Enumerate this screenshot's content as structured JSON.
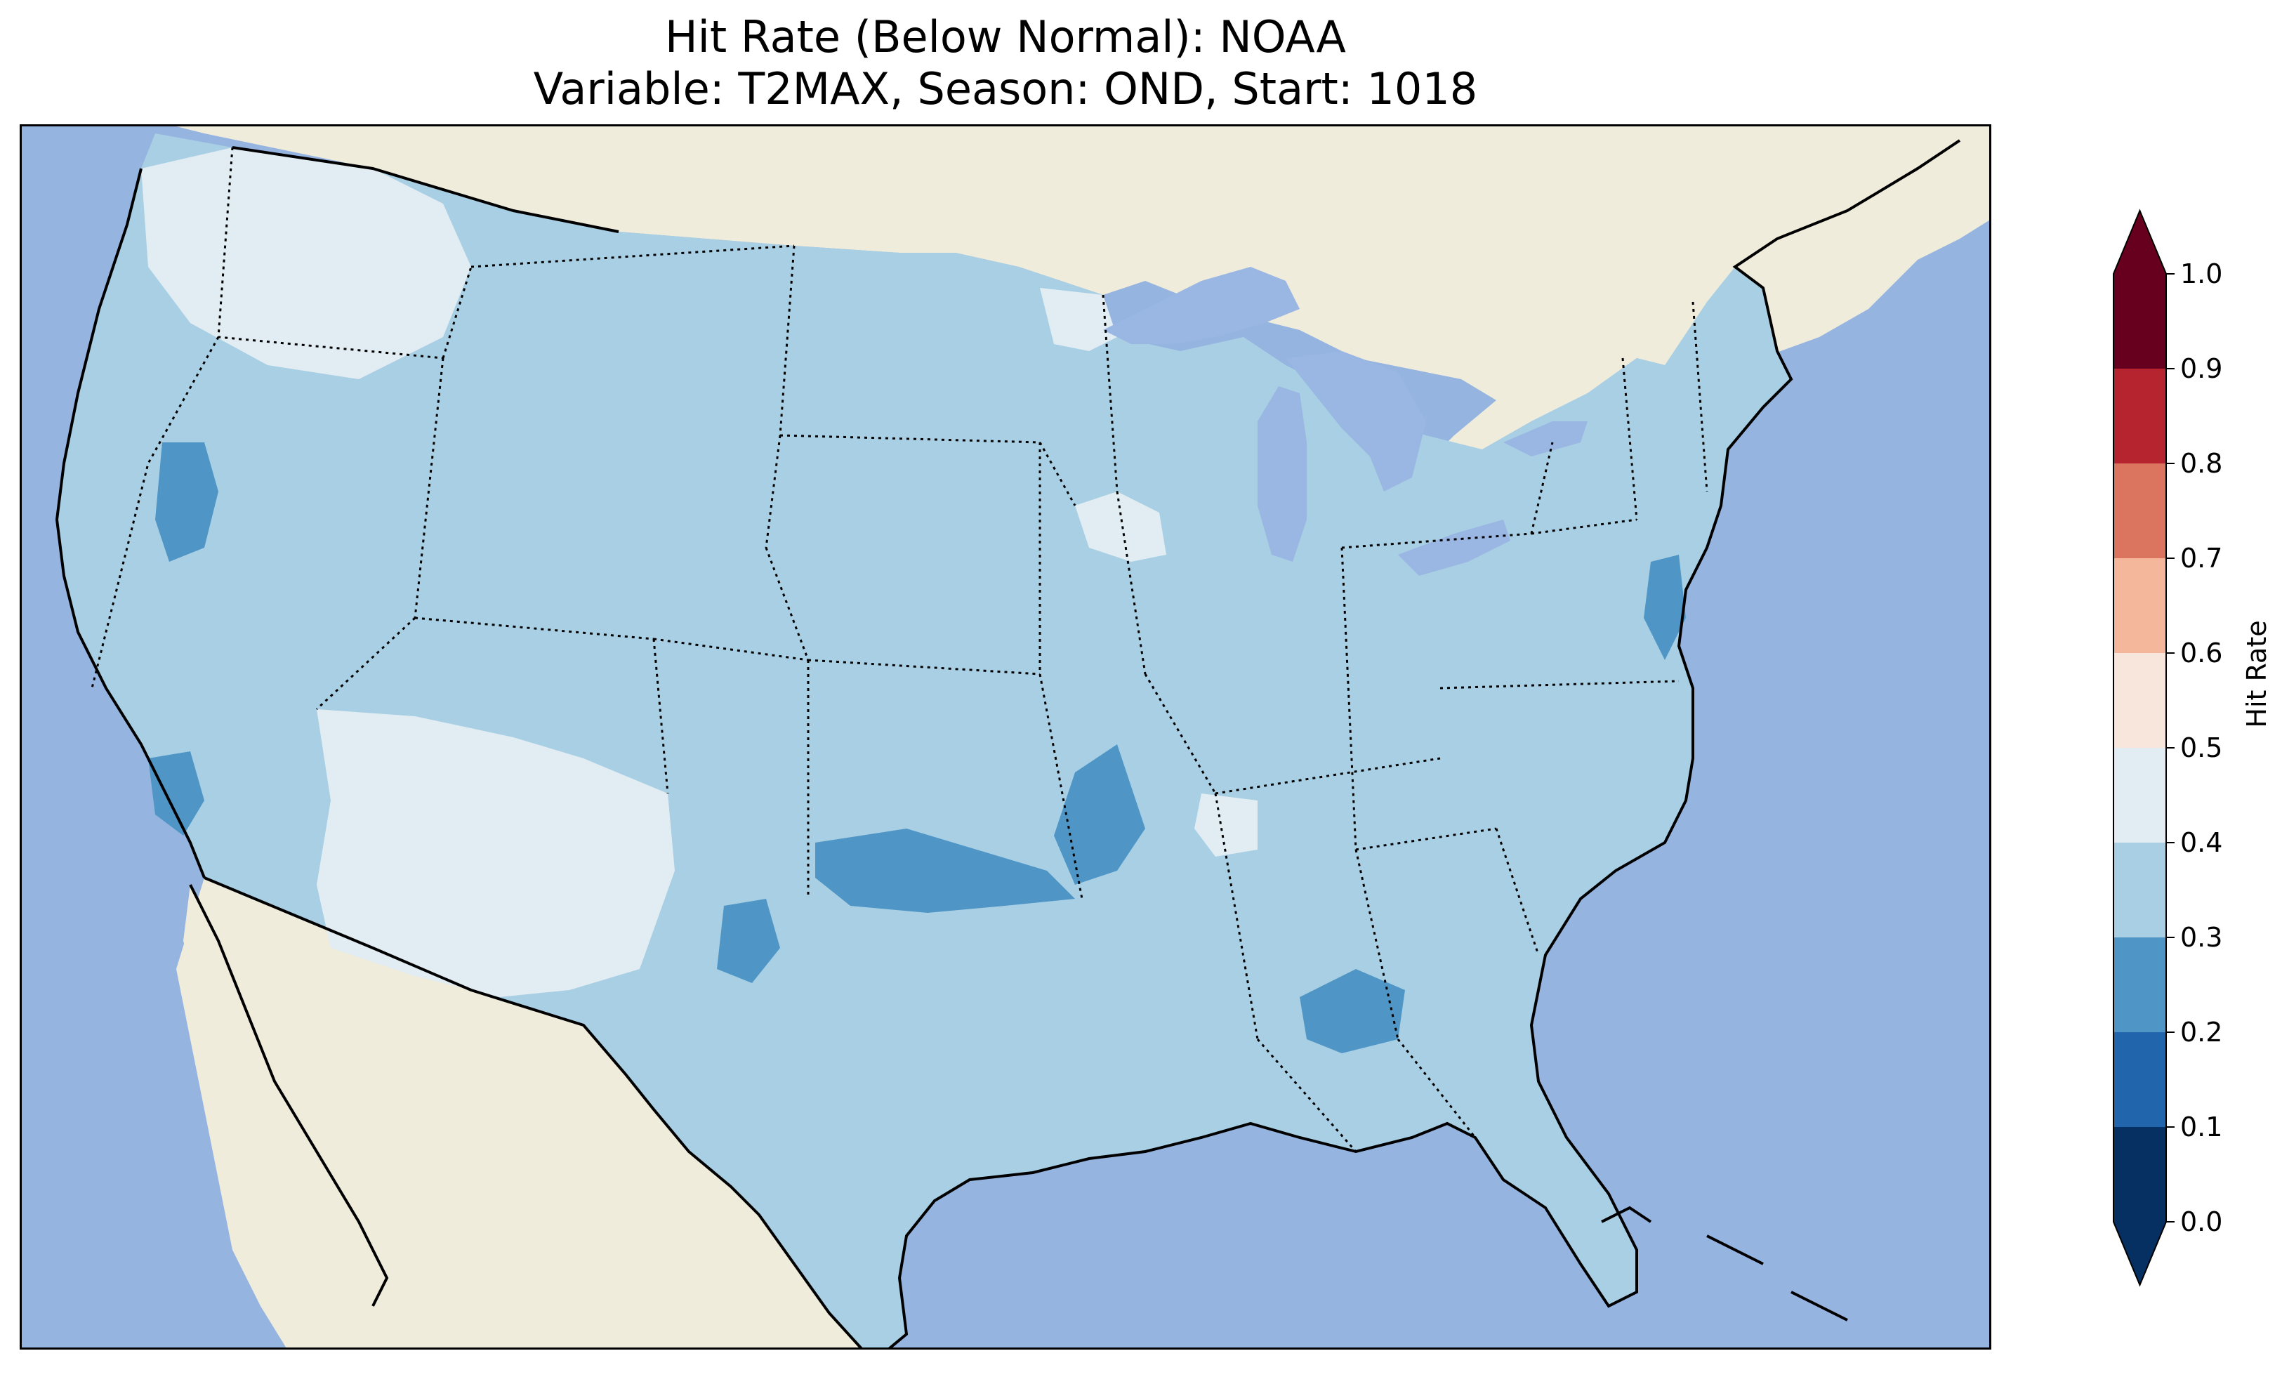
{
  "title": {
    "line1": "Hit Rate (Below Normal): NOAA",
    "line2": "Variable: T2MAX, Season: OND, Start: 1018"
  },
  "colors": {
    "ocean": "#96b4e0",
    "land": "#efecdc",
    "lake": "#9ab6e2",
    "border": "#000000"
  },
  "colorbar": {
    "label": "Hit Rate",
    "extend": "both",
    "ticks": [
      "0.0",
      "0.1",
      "0.2",
      "0.3",
      "0.4",
      "0.5",
      "0.6",
      "0.7",
      "0.8",
      "0.9",
      "1.0"
    ],
    "bins": [
      {
        "range": [
          0.0,
          0.1
        ],
        "color": "#053061"
      },
      {
        "range": [
          0.1,
          0.2
        ],
        "color": "#2166ac"
      },
      {
        "range": [
          0.2,
          0.3
        ],
        "color": "#4f96c6"
      },
      {
        "range": [
          0.3,
          0.4
        ],
        "color": "#a8cfe3"
      },
      {
        "range": [
          0.4,
          0.5
        ],
        "color": "#e1edf3"
      },
      {
        "range": [
          0.5,
          0.6
        ],
        "color": "#f8e6dc"
      },
      {
        "range": [
          0.6,
          0.7
        ],
        "color": "#f4b79b"
      },
      {
        "range": [
          0.7,
          0.8
        ],
        "color": "#dc7560"
      },
      {
        "range": [
          0.8,
          0.9
        ],
        "color": "#b5242f"
      },
      {
        "range": [
          0.9,
          1.0
        ],
        "color": "#67001f"
      }
    ],
    "under_color": "#053061",
    "over_color": "#67001f"
  },
  "map": {
    "projection": "lambert-conformal",
    "region": "contiguous-united-states",
    "dominant_hit_rate_bin": "0.3-0.4",
    "regions": [
      {
        "name": "pacific-northwest",
        "hit_rate_bin": "0.4-0.5"
      },
      {
        "name": "arizona-new-mexico",
        "hit_rate_bin": "0.4-0.5"
      },
      {
        "name": "northern-minnesota",
        "hit_rate_bin": "0.4-0.5"
      },
      {
        "name": "southern-wisconsin",
        "hit_rate_bin": "0.4-0.5"
      },
      {
        "name": "western-tennessee",
        "hit_rate_bin": "0.4-0.5"
      },
      {
        "name": "northeast-nevada",
        "hit_rate_bin": "0.2-0.3"
      },
      {
        "name": "southern-california",
        "hit_rate_bin": "0.2-0.3"
      },
      {
        "name": "oklahoma",
        "hit_rate_bin": "0.2-0.3"
      },
      {
        "name": "arkansas",
        "hit_rate_bin": "0.2-0.3"
      },
      {
        "name": "texas-panhandle",
        "hit_rate_bin": "0.2-0.3"
      },
      {
        "name": "gulf-coast-alabama",
        "hit_rate_bin": "0.2-0.3"
      },
      {
        "name": "mid-atlantic-coast",
        "hit_rate_bin": "0.2-0.3"
      }
    ]
  }
}
